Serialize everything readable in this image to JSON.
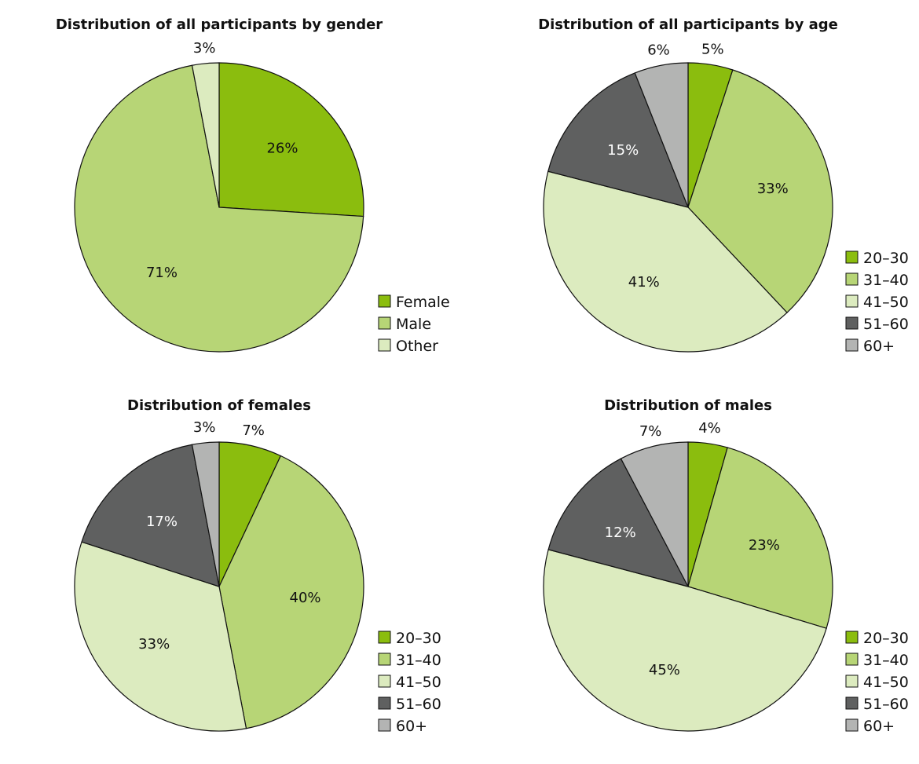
{
  "colors": {
    "20-30": "#8bbd0e",
    "31-40": "#b7d576",
    "41-50": "#dcebbf",
    "51-60": "#5f6060",
    "60+": "#b3b4b3",
    "Female": "#8bbd0e",
    "Male": "#b7d576",
    "Other": "#dcebbf"
  },
  "chart_data": [
    {
      "type": "pie",
      "title": "Distribution of all participants by gender",
      "categories": [
        "Female",
        "Male",
        "Other"
      ],
      "values": [
        26,
        71,
        3
      ],
      "labels": [
        "26%",
        "71%",
        "3%"
      ],
      "legend": [
        "Female",
        "Male",
        "Other"
      ],
      "legend_position": "bottom-right"
    },
    {
      "type": "pie",
      "title": "Distribution of all participants by age",
      "categories": [
        "20–30",
        "31–40",
        "41–50",
        "51–60",
        "60+"
      ],
      "values": [
        5,
        33,
        41,
        15,
        6
      ],
      "labels": [
        "5%",
        "33%",
        "41%",
        "15%",
        "6%"
      ],
      "legend": [
        "20–30",
        "31–40",
        "41–50",
        "51–60",
        "60+"
      ],
      "legend_position": "bottom-right"
    },
    {
      "type": "pie",
      "title": "Distribution of females",
      "categories": [
        "20–30",
        "31–40",
        "41–50",
        "51–60",
        "60+"
      ],
      "values": [
        7,
        40,
        33,
        17,
        3
      ],
      "labels": [
        "7%",
        "40%",
        "33%",
        "17%",
        "3%"
      ],
      "legend": [
        "20–30",
        "31–40",
        "41–50",
        "51–60",
        "60+"
      ],
      "legend_position": "bottom-right"
    },
    {
      "type": "pie",
      "title": "Distribution of males",
      "categories": [
        "20–30",
        "31–40",
        "41–50",
        "51–60",
        "60+"
      ],
      "values": [
        4,
        23,
        45,
        12,
        7
      ],
      "labels": [
        "4%",
        "23%",
        "45%",
        "12%",
        "7%"
      ],
      "legend": [
        "20–30",
        "31–40",
        "41–50",
        "51–60",
        "60+"
      ],
      "legend_position": "bottom-right"
    }
  ]
}
